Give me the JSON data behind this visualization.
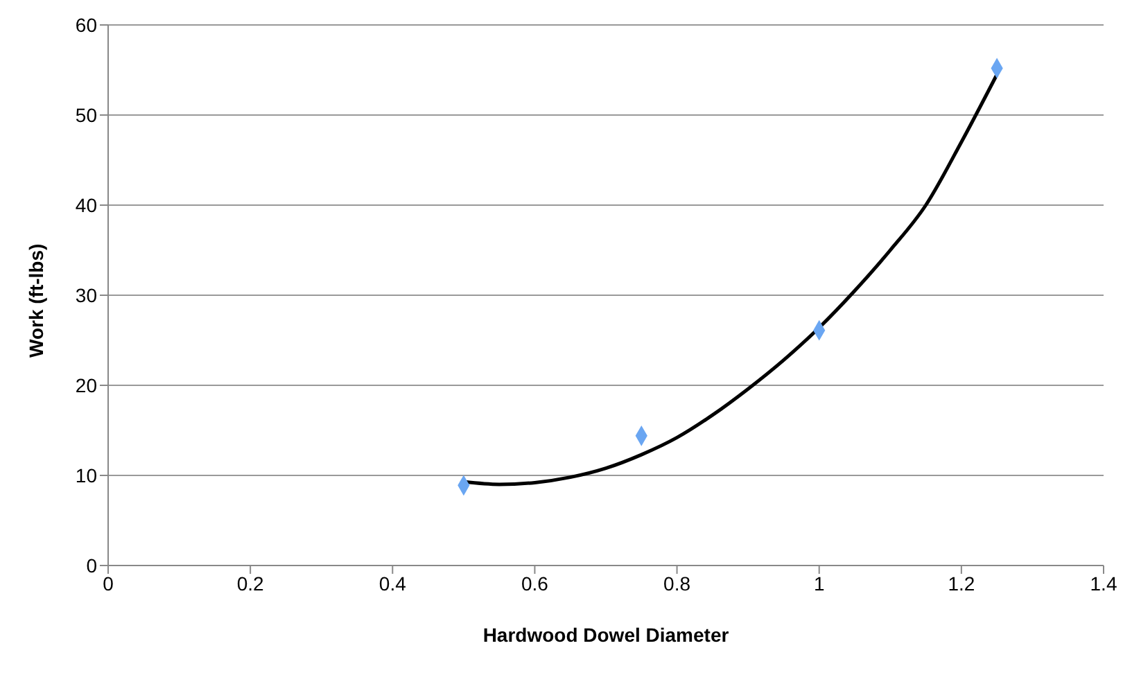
{
  "chart_data": {
    "type": "scatter",
    "xlabel": "Hardwood Dowel Diameter",
    "ylabel": "Work (ft-lbs)",
    "xlim": [
      0,
      1.4
    ],
    "xticks": [
      0,
      0.2,
      0.4,
      0.6,
      0.8,
      1,
      1.2,
      1.4
    ],
    "ylim": [
      0,
      60
    ],
    "yticks": [
      0,
      10,
      20,
      30,
      40,
      50,
      60
    ],
    "grid": "y",
    "series": [
      {
        "color": "#6aa6f2",
        "marker": "diamond",
        "x": [
          0.5,
          0.75,
          1,
          1.25
        ],
        "values": [
          8.9,
          14.4,
          26.1,
          55.2
        ]
      },
      {
        "type": "line",
        "color": "#000000",
        "marker": "none",
        "line_style": "solid",
        "x": [
          0.5,
          0.55,
          0.6,
          0.65,
          0.7,
          0.75,
          0.8,
          0.85,
          0.9,
          0.95,
          1.0,
          1.05,
          1.1,
          1.15,
          1.2,
          1.25
        ],
        "values": [
          9.3,
          9.0,
          9.2,
          9.8,
          10.8,
          12.3,
          14.2,
          16.7,
          19.6,
          22.8,
          26.4,
          30.5,
          35.0,
          40.0,
          47.0,
          54.5
        ]
      }
    ]
  }
}
